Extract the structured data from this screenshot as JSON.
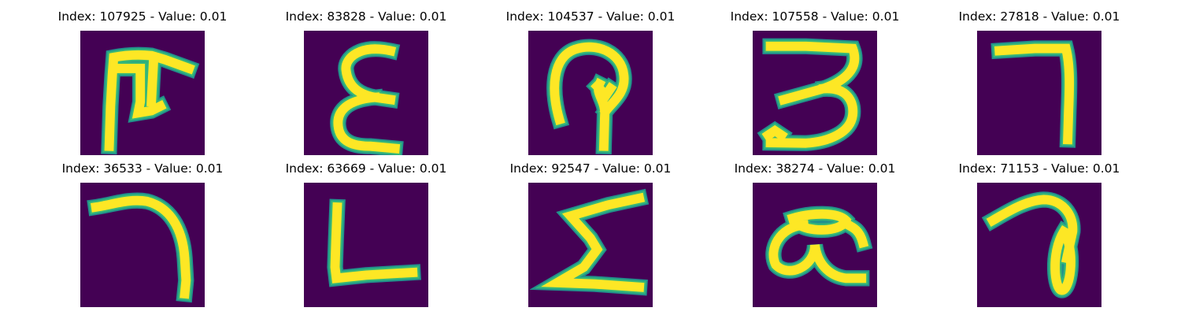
{
  "colors": {
    "background": "#440154",
    "stroke_core": "#fde725",
    "stroke_mid": "#35b779",
    "stroke_edge": "#21918c"
  },
  "panels": [
    {
      "title": "Index: 107925 - Value: 0.01",
      "strokes": [
        "M 6.5 26 L 6.8 17 L 7.2 10 L 7.5 6 C 10 5.5 13 5.3 16 5.6 L 19 6.5 L 24.5 8.5",
        "M 7.5 8.5 L 13.5 8.5 L 13.5 16 L 13 18.5 L 16 18 L 18 17",
        "M 16.5 6.5 L 16.2 12 L 16 16"
      ]
    },
    {
      "title": "Index: 83828 - Value: 0.01",
      "strokes": [
        "M 19.5 4.5 C 13 3 9 6 9.5 9 C 10 13 13 14.5 16 15 L 19.5 15.5",
        "M 16 15 C 10 15.5 7 18 7.8 22 C 8.5 25.5 12 26 15 26 L 20.5 26.5"
      ]
    },
    {
      "title": "Index: 104537 - Value: 0.01",
      "strokes": [
        "M 7 20 C 5 13 5.5 6 10.5 4.2 C 15.5 2.5 21 5 21.5 10 C 22 14 19 16 17.5 18",
        "M 16 12 C 15 14 17.5 16 17.2 19 L 17 26",
        "M 15.5 12.5 L 17.5 14.5 L 18.5 13"
      ]
    },
    {
      "title": "Index: 107558 - Value: 0.01",
      "strokes": [
        "M 4 3.5 L 12 3.5 L 22.5 4 C 24 8 21.5 11 16 13 L 7 15.5",
        "M 16 13 C 20 12.5 23 15 22.5 19 C 22 23 17 25 12 25.3 L 4 25.2",
        "M 3.5 23.5 L 5 22.5 L 6.5 23.5"
      ]
    },
    {
      "title": "Index: 27818 - Value: 0.01",
      "strokes": [
        "M 5 4.5 L 13 4 L 20 4 C 21 8 20.8 13 20.6 18 L 20.4 24.5"
      ]
    },
    {
      "title": "Index: 36533 - Value: 0.01",
      "strokes": [
        "M 3.5 5.5 C 7 5 11 3.5 15 4.2 C 20 5.5 23 10 23.5 17 L 23.8 22 L 23.5 25"
      ]
    },
    {
      "title": "Index: 63669 - Value: 0.01",
      "strokes": [
        "M 7.5 5.5 L 7.2 13 L 7 19 L 7.3 21.5 L 14 20.8 L 24.5 20.2"
      ]
    },
    {
      "title": "Index: 92547 - Value: 0.01",
      "strokes": [
        "M 25 3.5 L 18 5 L 9.5 7.5 L 14 12.5 L 15.5 15 L 12.5 19 L 6.5 22.5 L 15 22.8 L 25 23.5"
      ]
    },
    {
      "title": "Index: 38274 - Value: 0.01",
      "strokes": [
        "M 9 8 C 13 6.8 19 6.5 21 8.5 C 20 11 14 11 11.5 10",
        "M 11.5 9.5 C 6 10 3.5 15 5.2 18.5 C 8 21.5 14 19 14 14 C 14.5 18 17 21 21 21.5 L 24.5 21.5",
        "M 20.5 9 C 22.5 10 24 10.5 24.8 13.5"
      ]
    },
    {
      "title": "Index: 71153 - Value: 0.01",
      "strokes": [
        "M 3.5 8.5 C 7 6.5 11 4 15 3.8 C 19 3.8 21.8 7 21.5 11 L 20.2 17",
        "M 19.5 11 C 16.5 16 17.5 24 19 24.2 C 21 24.4 22 16 20 12"
      ]
    }
  ]
}
